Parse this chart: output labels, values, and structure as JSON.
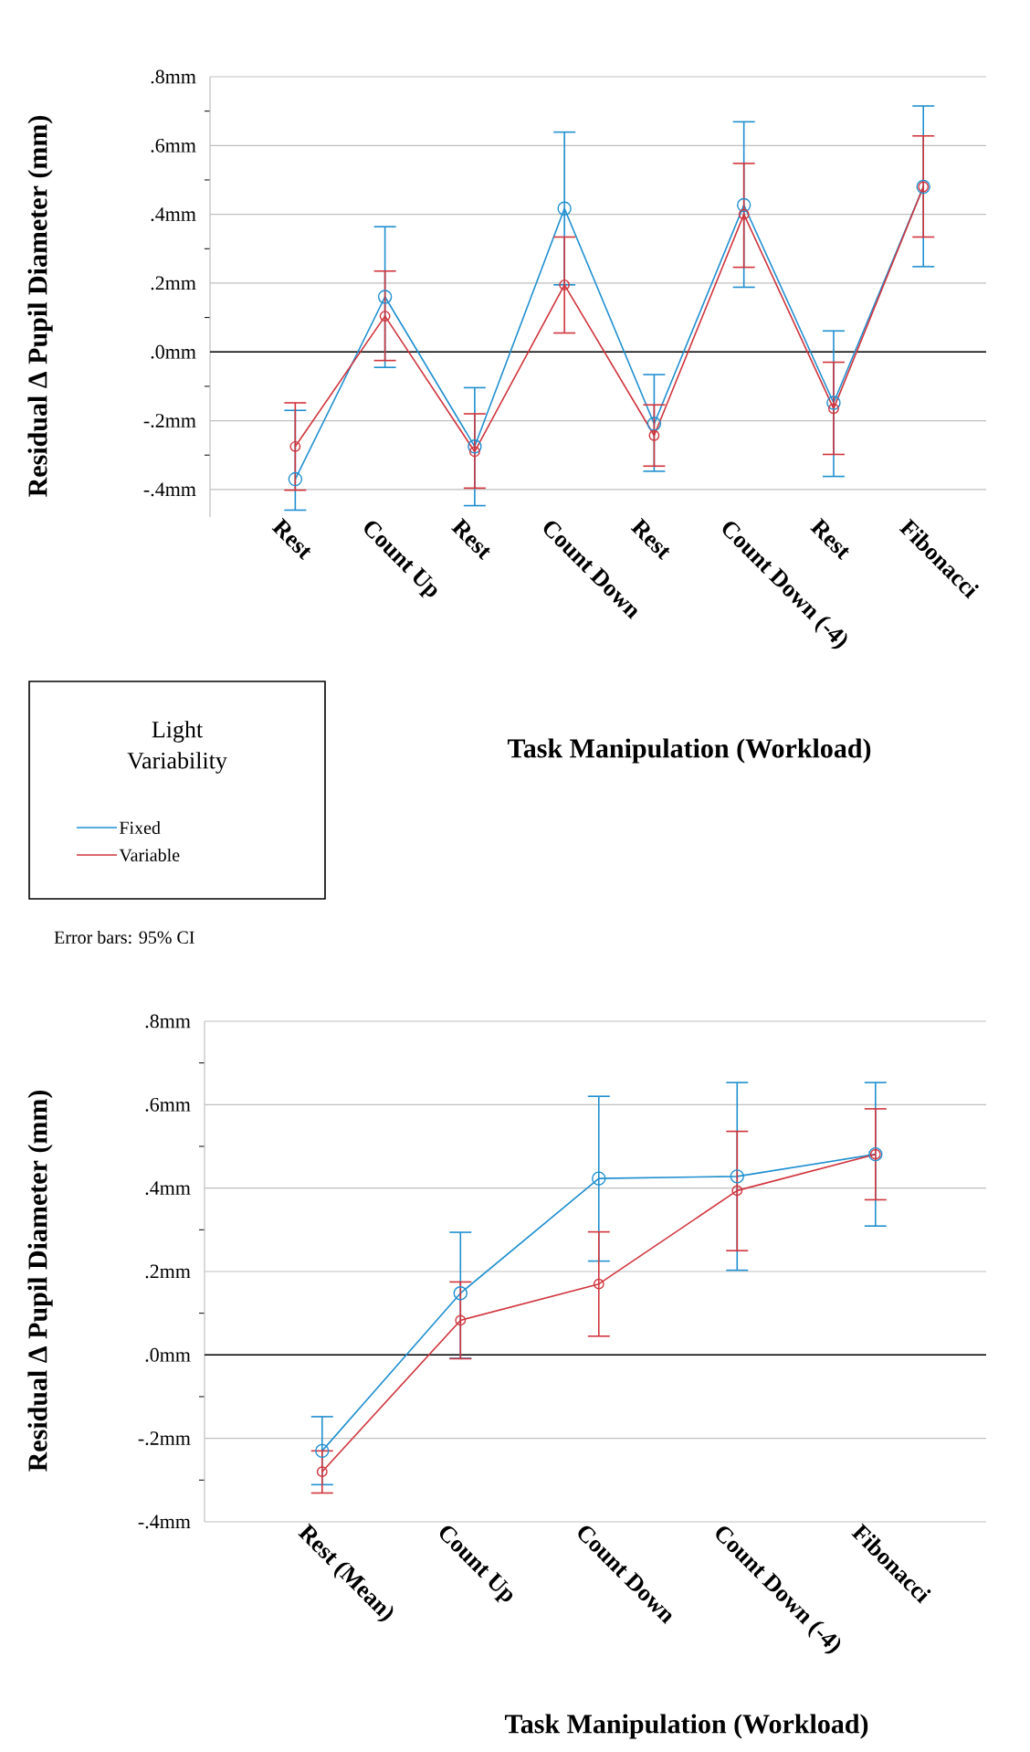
{
  "chart_data": [
    {
      "type": "line",
      "xlabel": "Task Manipulation (Workload)",
      "ylabel": "Residual Δ Pupil Diameter (mm)",
      "categories": [
        "Rest",
        "Count Up",
        "Rest",
        "Count Down",
        "Rest",
        "Count Down (-4)",
        "Rest",
        "Fibonacci"
      ],
      "series": [
        {
          "name": "Fixed",
          "color": "#1f8fd0",
          "values": [
            -0.37,
            0.16,
            -0.275,
            0.417,
            -0.209,
            0.427,
            -0.148,
            0.48
          ],
          "errors": [
            [
              -0.46,
              -0.17
            ],
            [
              -0.045,
              0.364
            ],
            [
              -0.447,
              -0.104
            ],
            [
              0.195,
              0.639
            ],
            [
              -0.347,
              -0.066
            ],
            [
              0.188,
              0.669
            ],
            [
              -0.362,
              0.061
            ],
            [
              0.248,
              0.715
            ]
          ]
        },
        {
          "name": "Variable",
          "color": "#d0343c",
          "values": [
            -0.275,
            0.104,
            -0.29,
            0.195,
            -0.243,
            0.4,
            -0.165,
            0.48
          ],
          "errors": [
            [
              -0.402,
              -0.148
            ],
            [
              -0.025,
              0.235
            ],
            [
              -0.396,
              -0.18
            ],
            [
              0.055,
              0.334
            ],
            [
              -0.332,
              -0.154
            ],
            [
              0.246,
              0.548
            ],
            [
              -0.298,
              -0.03
            ],
            [
              0.334,
              0.628
            ]
          ]
        }
      ],
      "ylim": [
        -0.48,
        0.8
      ],
      "yticks": [
        {
          "value": -0.4,
          "label": "-.4mm"
        },
        {
          "value": -0.3,
          "label": null
        },
        {
          "value": -0.2,
          "label": "-.2mm"
        },
        {
          "value": -0.1,
          "label": null
        },
        {
          "value": 0,
          "label": ".0mm"
        },
        {
          "value": 0.1,
          "label": null
        },
        {
          "value": 0.2,
          "label": ".2mm"
        },
        {
          "value": 0.3,
          "label": null
        },
        {
          "value": 0.4,
          "label": ".4mm"
        },
        {
          "value": 0.5,
          "label": null
        },
        {
          "value": 0.6,
          "label": ".6mm"
        },
        {
          "value": 0.7,
          "label": null
        },
        {
          "value": 0.8,
          "label": ".8mm"
        }
      ],
      "ref_lines": [
        {
          "axis": "y",
          "value": 0,
          "color": "#000000"
        }
      ],
      "grid": "y",
      "marker": "circle",
      "line_style": "solid",
      "legend": "bottom left",
      "legend_title": "Light Variability",
      "annotations": [
        "Error bars: 95% CI"
      ]
    },
    {
      "type": "line",
      "xlabel": "Task Manipulation (Workload)",
      "ylabel": "Residual Δ Pupil Diameter (mm)",
      "categories": [
        "Rest (Mean)",
        "Count Up",
        "Count Down",
        "Count Down (-4)",
        "Fibonacci"
      ],
      "series": [
        {
          "color": "#1f8fd0",
          "values": [
            -0.23,
            0.148,
            0.423,
            0.428,
            0.481
          ],
          "errors": [
            [
              -0.311,
              -0.148
            ],
            [
              -0.008,
              0.294
            ],
            [
              0.225,
              0.62
            ],
            [
              0.203,
              0.653
            ],
            [
              0.309,
              0.653
            ]
          ]
        },
        {
          "color": "#d0343c",
          "values": [
            -0.28,
            0.083,
            0.17,
            0.394,
            0.481
          ],
          "errors": [
            [
              -0.331,
              -0.23
            ],
            [
              -0.009,
              0.175
            ],
            [
              0.045,
              0.295
            ],
            [
              0.25,
              0.536
            ],
            [
              0.372,
              0.59
            ]
          ]
        }
      ],
      "ylim": [
        -0.4,
        0.8
      ],
      "yticks": [
        {
          "value": -0.4,
          "label": "-.4mm"
        },
        {
          "value": -0.3,
          "label": null
        },
        {
          "value": -0.2,
          "label": "-.2mm"
        },
        {
          "value": -0.1,
          "label": null
        },
        {
          "value": 0,
          "label": ".0mm"
        },
        {
          "value": 0.1,
          "label": null
        },
        {
          "value": 0.2,
          "label": ".2mm"
        },
        {
          "value": 0.3,
          "label": null
        },
        {
          "value": 0.4,
          "label": ".4mm"
        },
        {
          "value": 0.5,
          "label": null
        },
        {
          "value": 0.6,
          "label": ".6mm"
        },
        {
          "value": 0.7,
          "label": null
        },
        {
          "value": 0.8,
          "label": ".8mm"
        }
      ],
      "ref_lines": [
        {
          "axis": "y",
          "value": 0,
          "color": "#000000"
        }
      ],
      "grid": "y",
      "marker": "circle",
      "line_style": "solid"
    }
  ]
}
